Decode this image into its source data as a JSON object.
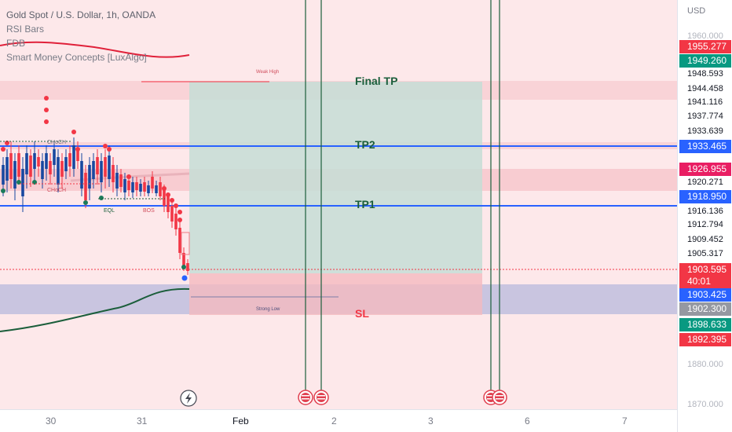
{
  "legend": {
    "symbol": "Gold Spot / U.S. Dollar, 1h, OANDA",
    "ind1": "RSI Bars",
    "ind2": "FDB",
    "ind3": "Smart Money Concepts [LuxAlgo]"
  },
  "price_axis": {
    "currency": "USD",
    "ticks": [
      {
        "label": "1960.000",
        "faint": true
      },
      {
        "label": "1948.593"
      },
      {
        "label": "1944.458"
      },
      {
        "label": "1941.116"
      },
      {
        "label": "1937.774"
      },
      {
        "label": "1933.639"
      },
      {
        "label": "1920.271"
      },
      {
        "label": "1916.136"
      },
      {
        "label": "1912.794"
      },
      {
        "label": "1909.452"
      },
      {
        "label": "1905.317"
      },
      {
        "label": "1880.000",
        "faint": true
      },
      {
        "label": "1870.000",
        "faint": true
      }
    ],
    "tags": [
      {
        "label": "1955.277",
        "color": "#f23645"
      },
      {
        "label": "1949.260",
        "color": "#089981"
      },
      {
        "label": "1933.465",
        "color": "#2962ff"
      },
      {
        "label": "1926.955",
        "color": "#e91e63"
      },
      {
        "label": "1918.950",
        "color": "#2962ff"
      },
      {
        "label": "1903.595",
        "sub": "40:01",
        "color": "#f23645"
      },
      {
        "label": "1903.425",
        "color": "#2962ff"
      },
      {
        "label": "1902.300",
        "color": "#9598a1"
      },
      {
        "label": "1898.633",
        "color": "#089981"
      },
      {
        "label": "1892.395",
        "color": "#f23645"
      }
    ]
  },
  "time_axis": {
    "labels": [
      {
        "text": "30",
        "bold": false
      },
      {
        "text": "31",
        "bold": false
      },
      {
        "text": "Feb",
        "bold": true
      },
      {
        "text": "2",
        "bold": false
      },
      {
        "text": "3",
        "bold": false
      },
      {
        "text": "6",
        "bold": false
      },
      {
        "text": "7",
        "bold": false
      }
    ]
  },
  "annotations": {
    "final_tp": "Final TP",
    "tp2": "TP2",
    "tp1": "TP1",
    "sl": "SL",
    "weak_high": "Weak High",
    "strong_low": "Strong Low",
    "choch1": "CHoCH",
    "choch2": "CHoCH",
    "eql": "EQL",
    "bos": "BOS"
  },
  "colors": {
    "bull": "#1848a0",
    "bear": "#f23645",
    "tp_zone": "#b7d8cf",
    "sl_zone": "#f7c8cc",
    "level_line": "#2962ff",
    "event_line": "#1b5e3b"
  },
  "icons": {
    "replay": "lightning-icon",
    "event": "us-flag-icon"
  }
}
